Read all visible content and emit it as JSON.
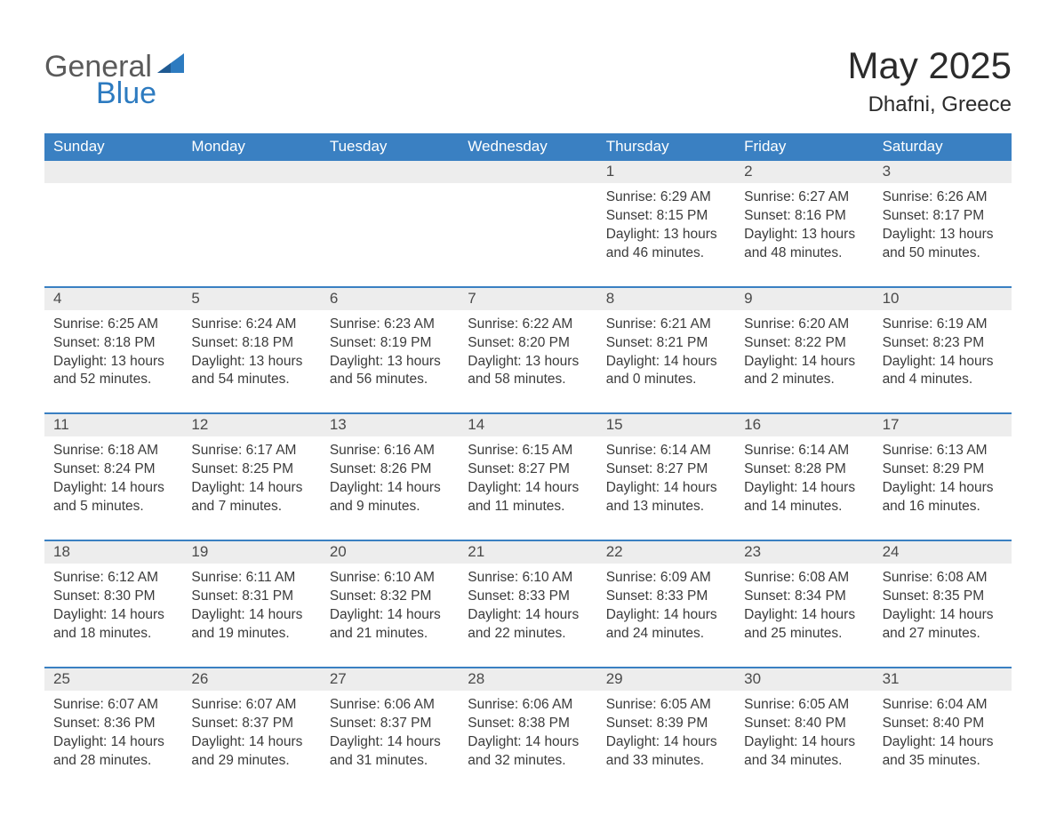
{
  "logo": {
    "general": "General",
    "blue": "Blue"
  },
  "title": "May 2025",
  "location": "Dhafni, Greece",
  "colors": {
    "header_bg": "#3a80c2",
    "header_text": "#ffffff",
    "daynum_bg": "#ededed",
    "text": "#3b3b3b",
    "rule": "#3a80c2",
    "logo_gray": "#5a5a5a",
    "logo_blue": "#2d7bc0"
  },
  "dow": [
    "Sunday",
    "Monday",
    "Tuesday",
    "Wednesday",
    "Thursday",
    "Friday",
    "Saturday"
  ],
  "weeks": [
    [
      null,
      null,
      null,
      null,
      {
        "n": "1",
        "sr": "Sunrise: 6:29 AM",
        "ss": "Sunset: 8:15 PM",
        "d1": "Daylight: 13 hours",
        "d2": "and 46 minutes."
      },
      {
        "n": "2",
        "sr": "Sunrise: 6:27 AM",
        "ss": "Sunset: 8:16 PM",
        "d1": "Daylight: 13 hours",
        "d2": "and 48 minutes."
      },
      {
        "n": "3",
        "sr": "Sunrise: 6:26 AM",
        "ss": "Sunset: 8:17 PM",
        "d1": "Daylight: 13 hours",
        "d2": "and 50 minutes."
      }
    ],
    [
      {
        "n": "4",
        "sr": "Sunrise: 6:25 AM",
        "ss": "Sunset: 8:18 PM",
        "d1": "Daylight: 13 hours",
        "d2": "and 52 minutes."
      },
      {
        "n": "5",
        "sr": "Sunrise: 6:24 AM",
        "ss": "Sunset: 8:18 PM",
        "d1": "Daylight: 13 hours",
        "d2": "and 54 minutes."
      },
      {
        "n": "6",
        "sr": "Sunrise: 6:23 AM",
        "ss": "Sunset: 8:19 PM",
        "d1": "Daylight: 13 hours",
        "d2": "and 56 minutes."
      },
      {
        "n": "7",
        "sr": "Sunrise: 6:22 AM",
        "ss": "Sunset: 8:20 PM",
        "d1": "Daylight: 13 hours",
        "d2": "and 58 minutes."
      },
      {
        "n": "8",
        "sr": "Sunrise: 6:21 AM",
        "ss": "Sunset: 8:21 PM",
        "d1": "Daylight: 14 hours",
        "d2": "and 0 minutes."
      },
      {
        "n": "9",
        "sr": "Sunrise: 6:20 AM",
        "ss": "Sunset: 8:22 PM",
        "d1": "Daylight: 14 hours",
        "d2": "and 2 minutes."
      },
      {
        "n": "10",
        "sr": "Sunrise: 6:19 AM",
        "ss": "Sunset: 8:23 PM",
        "d1": "Daylight: 14 hours",
        "d2": "and 4 minutes."
      }
    ],
    [
      {
        "n": "11",
        "sr": "Sunrise: 6:18 AM",
        "ss": "Sunset: 8:24 PM",
        "d1": "Daylight: 14 hours",
        "d2": "and 5 minutes."
      },
      {
        "n": "12",
        "sr": "Sunrise: 6:17 AM",
        "ss": "Sunset: 8:25 PM",
        "d1": "Daylight: 14 hours",
        "d2": "and 7 minutes."
      },
      {
        "n": "13",
        "sr": "Sunrise: 6:16 AM",
        "ss": "Sunset: 8:26 PM",
        "d1": "Daylight: 14 hours",
        "d2": "and 9 minutes."
      },
      {
        "n": "14",
        "sr": "Sunrise: 6:15 AM",
        "ss": "Sunset: 8:27 PM",
        "d1": "Daylight: 14 hours",
        "d2": "and 11 minutes."
      },
      {
        "n": "15",
        "sr": "Sunrise: 6:14 AM",
        "ss": "Sunset: 8:27 PM",
        "d1": "Daylight: 14 hours",
        "d2": "and 13 minutes."
      },
      {
        "n": "16",
        "sr": "Sunrise: 6:14 AM",
        "ss": "Sunset: 8:28 PM",
        "d1": "Daylight: 14 hours",
        "d2": "and 14 minutes."
      },
      {
        "n": "17",
        "sr": "Sunrise: 6:13 AM",
        "ss": "Sunset: 8:29 PM",
        "d1": "Daylight: 14 hours",
        "d2": "and 16 minutes."
      }
    ],
    [
      {
        "n": "18",
        "sr": "Sunrise: 6:12 AM",
        "ss": "Sunset: 8:30 PM",
        "d1": "Daylight: 14 hours",
        "d2": "and 18 minutes."
      },
      {
        "n": "19",
        "sr": "Sunrise: 6:11 AM",
        "ss": "Sunset: 8:31 PM",
        "d1": "Daylight: 14 hours",
        "d2": "and 19 minutes."
      },
      {
        "n": "20",
        "sr": "Sunrise: 6:10 AM",
        "ss": "Sunset: 8:32 PM",
        "d1": "Daylight: 14 hours",
        "d2": "and 21 minutes."
      },
      {
        "n": "21",
        "sr": "Sunrise: 6:10 AM",
        "ss": "Sunset: 8:33 PM",
        "d1": "Daylight: 14 hours",
        "d2": "and 22 minutes."
      },
      {
        "n": "22",
        "sr": "Sunrise: 6:09 AM",
        "ss": "Sunset: 8:33 PM",
        "d1": "Daylight: 14 hours",
        "d2": "and 24 minutes."
      },
      {
        "n": "23",
        "sr": "Sunrise: 6:08 AM",
        "ss": "Sunset: 8:34 PM",
        "d1": "Daylight: 14 hours",
        "d2": "and 25 minutes."
      },
      {
        "n": "24",
        "sr": "Sunrise: 6:08 AM",
        "ss": "Sunset: 8:35 PM",
        "d1": "Daylight: 14 hours",
        "d2": "and 27 minutes."
      }
    ],
    [
      {
        "n": "25",
        "sr": "Sunrise: 6:07 AM",
        "ss": "Sunset: 8:36 PM",
        "d1": "Daylight: 14 hours",
        "d2": "and 28 minutes."
      },
      {
        "n": "26",
        "sr": "Sunrise: 6:07 AM",
        "ss": "Sunset: 8:37 PM",
        "d1": "Daylight: 14 hours",
        "d2": "and 29 minutes."
      },
      {
        "n": "27",
        "sr": "Sunrise: 6:06 AM",
        "ss": "Sunset: 8:37 PM",
        "d1": "Daylight: 14 hours",
        "d2": "and 31 minutes."
      },
      {
        "n": "28",
        "sr": "Sunrise: 6:06 AM",
        "ss": "Sunset: 8:38 PM",
        "d1": "Daylight: 14 hours",
        "d2": "and 32 minutes."
      },
      {
        "n": "29",
        "sr": "Sunrise: 6:05 AM",
        "ss": "Sunset: 8:39 PM",
        "d1": "Daylight: 14 hours",
        "d2": "and 33 minutes."
      },
      {
        "n": "30",
        "sr": "Sunrise: 6:05 AM",
        "ss": "Sunset: 8:40 PM",
        "d1": "Daylight: 14 hours",
        "d2": "and 34 minutes."
      },
      {
        "n": "31",
        "sr": "Sunrise: 6:04 AM",
        "ss": "Sunset: 8:40 PM",
        "d1": "Daylight: 14 hours",
        "d2": "and 35 minutes."
      }
    ]
  ]
}
